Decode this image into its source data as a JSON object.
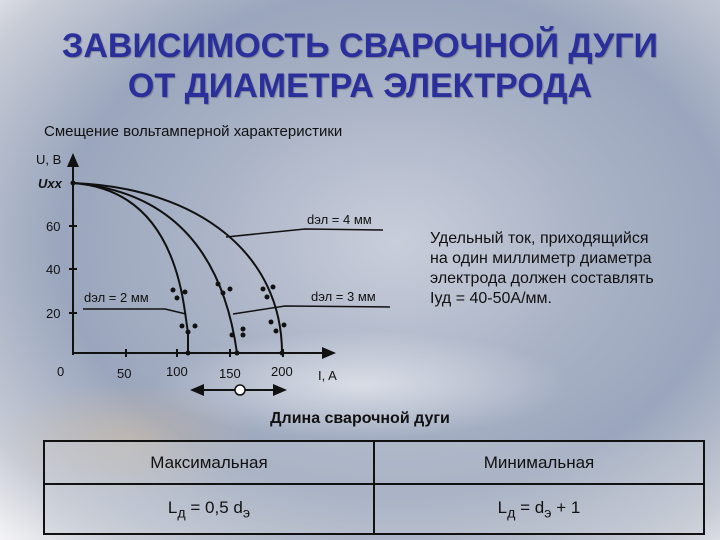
{
  "title": {
    "line1": "ЗАВИСИМОСТЬ СВАРОЧНОЙ ДУГИ",
    "line2": "ОТ ДИАМЕТРА ЭЛЕКТРОДА",
    "color": "#2b2f9c"
  },
  "subtitle": "Смещение вольтамперной характеристики",
  "diagram": {
    "y_axis_label": "U, B",
    "x_axis_label": "I, A",
    "y_open_circuit_label": "Uxx",
    "y_ticks": [
      "60",
      "40",
      "20"
    ],
    "x_ticks": [
      "0",
      "50",
      "100",
      "150",
      "200"
    ],
    "curves": [
      {
        "label": "dэл = 2 мм"
      },
      {
        "label": "dэл = 3 мм"
      },
      {
        "label": "dэл = 4 мм"
      }
    ]
  },
  "note": [
    "Удельный ток, приходящийся",
    "на один миллиметр диаметра",
    "электрода должен составлять",
    "Iуд = 40-50А/мм."
  ],
  "arc_length": {
    "caption": "Длина сварочной дуги",
    "headers": [
      "Максимальная",
      "Минимальная"
    ],
    "formulas": [
      {
        "L": "L",
        "L_sub": "д",
        "eq": " = 0,5 d",
        "d_sub": "э",
        "tail": ""
      },
      {
        "L": "L",
        "L_sub": "д",
        "eq": " = d",
        "d_sub": "э",
        "tail": " + 1"
      }
    ]
  }
}
